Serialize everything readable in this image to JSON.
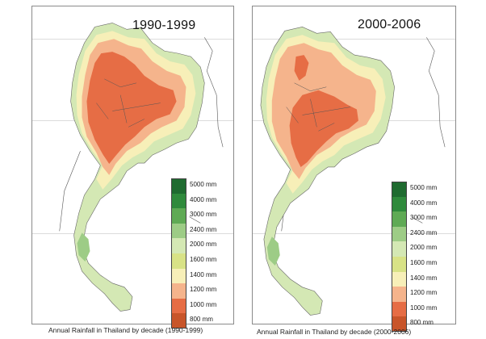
{
  "panels": [
    {
      "period": "1990-1999",
      "caption": "Annual Rainfall in Thailand by decade (1990-1999)"
    },
    {
      "period": "2000-2006",
      "caption": "Annual Rainfall in Thailand by decade (2000-2006)"
    }
  ],
  "legend": [
    {
      "label": "5000 mm",
      "color": "#1f6b30"
    },
    {
      "label": "4000 mm",
      "color": "#2f8a3c"
    },
    {
      "label": "3000 mm",
      "color": "#5faa55"
    },
    {
      "label": "2400 mm",
      "color": "#9dcc86"
    },
    {
      "label": "2000 mm",
      "color": "#d4e8b4"
    },
    {
      "label": "1600 mm",
      "color": "#d8e286"
    },
    {
      "label": "1400 mm",
      "color": "#f7efb8"
    },
    {
      "label": "1200 mm",
      "color": "#f5b48c"
    },
    {
      "label": "1000 mm",
      "color": "#e66d45"
    },
    {
      "label": "800 mm",
      "color": "#c8552a"
    }
  ]
}
